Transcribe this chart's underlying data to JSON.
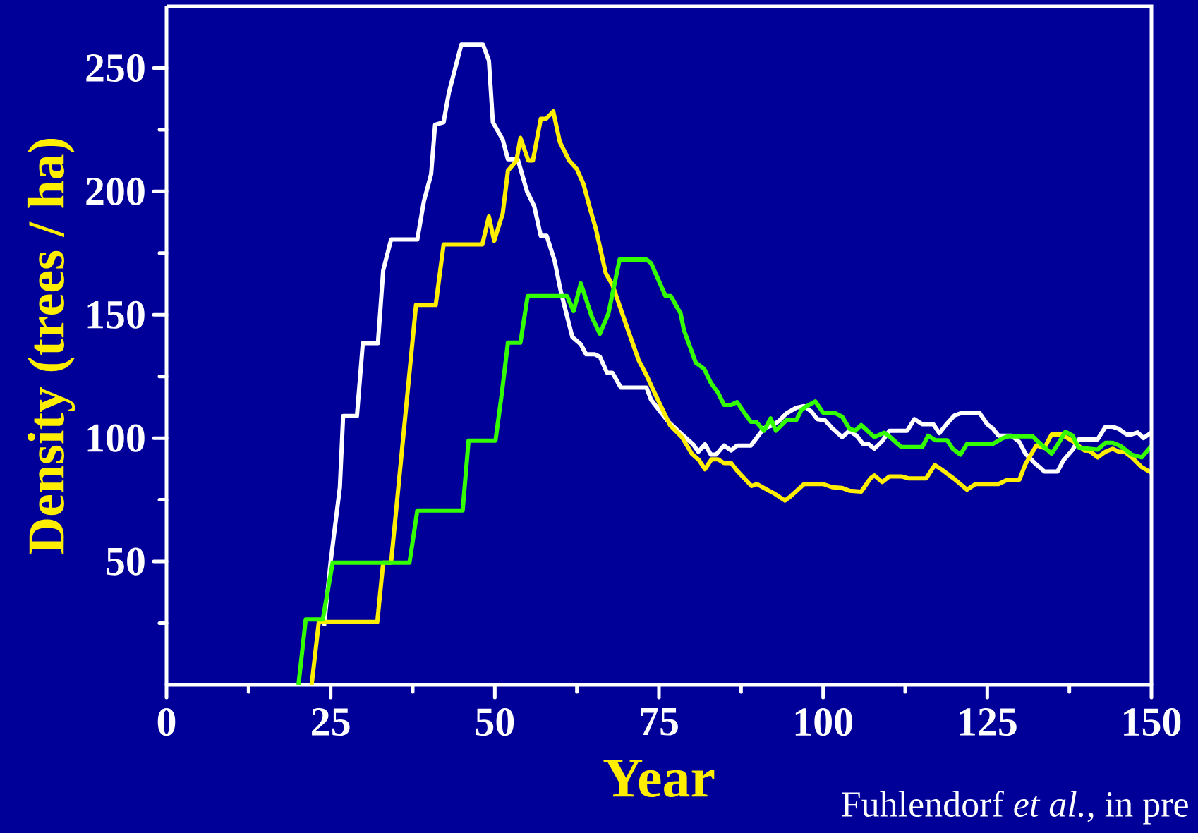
{
  "chart_data": {
    "type": "line",
    "xlabel": "Year",
    "ylabel": "Density (trees / ha)",
    "annotations": [
      "Fuhlendorf *et al.*, in pre"
    ],
    "xlim": [
      0,
      150
    ],
    "ylim": [
      0,
      275
    ],
    "xticks": [
      0,
      {
        "value": 12.5,
        "label": null
      },
      25,
      {
        "value": 37.5,
        "label": null
      },
      50,
      {
        "value": 62.5,
        "label": null
      },
      75,
      {
        "value": 87.5,
        "label": null
      },
      100,
      {
        "value": 112.5,
        "label": null
      },
      125,
      {
        "value": 137.5,
        "label": null
      },
      150
    ],
    "yticks": [
      {
        "value": 25,
        "label": null
      },
      50,
      {
        "value": 75,
        "label": null
      },
      100,
      {
        "value": 125,
        "label": null
      },
      150,
      {
        "value": 175,
        "label": null
      },
      200,
      {
        "value": 225,
        "label": null
      },
      250
    ],
    "grid": false,
    "series": [
      {
        "color": "#ffffff",
        "x": [
          24,
          25,
          26.4,
          26.9,
          29,
          29.9,
          32.2,
          33,
          34.2,
          38.2,
          39.2,
          40.3,
          40.9,
          42.2,
          43,
          44.9,
          48.2,
          49.1,
          49.7,
          51.2,
          52,
          53.5,
          54.9,
          56,
          57,
          57.9,
          59.1,
          60,
          61.8,
          63.1,
          63.9,
          65.2,
          66,
          67.1,
          67.9,
          69.2,
          73.1,
          73.8,
          76.3,
          78.3,
          80.2,
          81,
          82,
          82.9,
          83.7,
          84.9,
          86,
          86.9,
          89,
          91,
          92.1,
          93.3,
          94.4,
          95.9,
          97.1,
          98.2,
          99.1,
          100.3,
          101.4,
          102.9,
          104,
          105.2,
          106.1,
          106.9,
          107.8,
          109,
          110.1,
          112.8,
          113.9,
          115.1,
          116.8,
          117.7,
          118.9,
          120,
          121.2,
          123.8,
          125,
          125.8,
          126.7,
          128.7,
          129.9,
          130.8,
          132.2,
          133.7,
          135.7,
          136.6,
          138,
          138.9,
          141.8,
          143,
          144.1,
          145,
          146.2,
          147,
          147.9,
          148.8,
          150
        ],
        "values": [
          24,
          50,
          80,
          109,
          109,
          138.5,
          138.5,
          168,
          180.5,
          180.5,
          196,
          207,
          227,
          228,
          240,
          259.5,
          259.5,
          253,
          228,
          221,
          213,
          213,
          200,
          194,
          182,
          182,
          172,
          160,
          141,
          138,
          134,
          134,
          133,
          126.5,
          126.5,
          120.5,
          120.5,
          115.5,
          107,
          102,
          97.5,
          94.5,
          97.5,
          93.3,
          93.3,
          97,
          95,
          97,
          97,
          104,
          105,
          107,
          110,
          112.3,
          113,
          110.8,
          107.7,
          107.2,
          104,
          100.4,
          103,
          100.7,
          97.6,
          97.6,
          95.7,
          98.8,
          103,
          103,
          107.7,
          105.6,
          105.6,
          102,
          106,
          109.2,
          110.3,
          110.3,
          105.6,
          104,
          101,
          101,
          98.4,
          93.7,
          90,
          86.5,
          86.5,
          91,
          95.3,
          99.5,
          99.5,
          104.6,
          104.6,
          103.8,
          101.5,
          101.5,
          102.3,
          100,
          102.3
        ]
      },
      {
        "color": "#ffee00",
        "x": [
          22.1,
          23.2,
          32.1,
          33,
          34.2,
          38,
          41,
          42.2,
          48.1,
          49.1,
          49.9,
          51.2,
          52,
          53.3,
          53.9,
          55.1,
          55.8,
          57,
          57.8,
          58.9,
          59.9,
          61.3,
          62.5,
          63.5,
          64.5,
          65.4,
          66.9,
          67.9,
          70,
          71.9,
          73.1,
          74.4,
          76.7,
          78.5,
          80,
          81.1,
          82,
          83,
          84,
          84.9,
          86,
          86.9,
          88,
          89.1,
          89.9,
          91,
          92.4,
          94.2,
          95,
          97.1,
          100,
          101.4,
          102.9,
          104,
          105.8,
          107.2,
          107.8,
          109,
          110.1,
          111.9,
          113,
          115.7,
          117,
          118.3,
          120,
          120.9,
          121.9,
          123.2,
          126.7,
          128.1,
          129.9,
          130.8,
          132.5,
          133.7,
          134.8,
          136.3,
          138,
          139.8,
          140.6,
          141.8,
          143,
          144.1,
          145,
          145.9,
          147,
          148.5,
          150
        ],
        "values": [
          0,
          25.5,
          25.5,
          49.5,
          49.5,
          154,
          154,
          178.5,
          178.5,
          189.8,
          180,
          191,
          208.4,
          212.5,
          221.7,
          212.5,
          212.5,
          229.4,
          229.4,
          232.4,
          220,
          212.6,
          209,
          203,
          193,
          184.7,
          166.8,
          162.2,
          145.9,
          131.6,
          125.5,
          118,
          105.2,
          100.4,
          93.7,
          91.1,
          87.4,
          91.4,
          91.4,
          89.9,
          89.9,
          86.8,
          83.7,
          80.6,
          81.4,
          79.8,
          77.8,
          74.7,
          76.3,
          81.4,
          81.4,
          80.1,
          79.8,
          78.7,
          78.3,
          83.7,
          84.9,
          82.2,
          84.5,
          84.5,
          83.7,
          83.7,
          89.1,
          86.8,
          83.4,
          81.4,
          79.1,
          81.4,
          81.4,
          83.2,
          83.2,
          89.4,
          97.1,
          96,
          101.5,
          101.5,
          98.8,
          95,
          94.8,
          92.2,
          94.5,
          95.7,
          94.5,
          94.5,
          92.2,
          88.3,
          86
        ]
      },
      {
        "color": "#33ff00",
        "x": [
          20.1,
          21.2,
          23.8,
          25.3,
          37,
          38.2,
          45.1,
          46,
          50.1,
          51,
          52,
          53.9,
          55,
          61,
          62,
          63.1,
          64.8,
          66,
          67.3,
          69,
          73.1,
          73.8,
          76,
          76.8,
          78.3,
          78.8,
          80.6,
          81.9,
          82.9,
          84,
          84.9,
          86,
          86.9,
          88,
          89,
          89.8,
          91,
          92,
          92.8,
          94.4,
          95.9,
          96.7,
          97.6,
          98.8,
          100,
          101.7,
          102.9,
          104,
          104.9,
          105.8,
          107.8,
          109.3,
          110.1,
          111.9,
          115.1,
          116,
          117.1,
          118.9,
          119.7,
          120.9,
          121.9,
          125.8,
          127.3,
          128.1,
          131.9,
          132.8,
          134.8,
          135.7,
          136.9,
          138,
          138.9,
          141.8,
          143,
          144.1,
          145.3,
          147,
          148.5,
          150
        ],
        "values": [
          0,
          26.5,
          26.5,
          49.5,
          49.5,
          70.7,
          70.7,
          99,
          99,
          116.8,
          138.7,
          138.7,
          157.6,
          157.6,
          151.5,
          162.7,
          149,
          142.3,
          150.5,
          172.4,
          172.4,
          170.9,
          157.6,
          157.6,
          150.5,
          143.8,
          130.6,
          128,
          122.4,
          118.4,
          113.5,
          113.5,
          114.6,
          110.3,
          106.6,
          106.6,
          103,
          108,
          103,
          107.2,
          107.2,
          111.5,
          113.1,
          114.9,
          110.3,
          110.3,
          108.7,
          103.8,
          103,
          105.3,
          100.4,
          102.2,
          100.7,
          96.4,
          96.4,
          101,
          99.1,
          99.1,
          95.8,
          93.3,
          97.6,
          97.6,
          99.9,
          100.7,
          100.7,
          98.4,
          93.7,
          97.3,
          102.6,
          101,
          96.1,
          95.3,
          98.1,
          98.1,
          96.8,
          93.3,
          92.2,
          96.8
        ]
      }
    ]
  }
}
